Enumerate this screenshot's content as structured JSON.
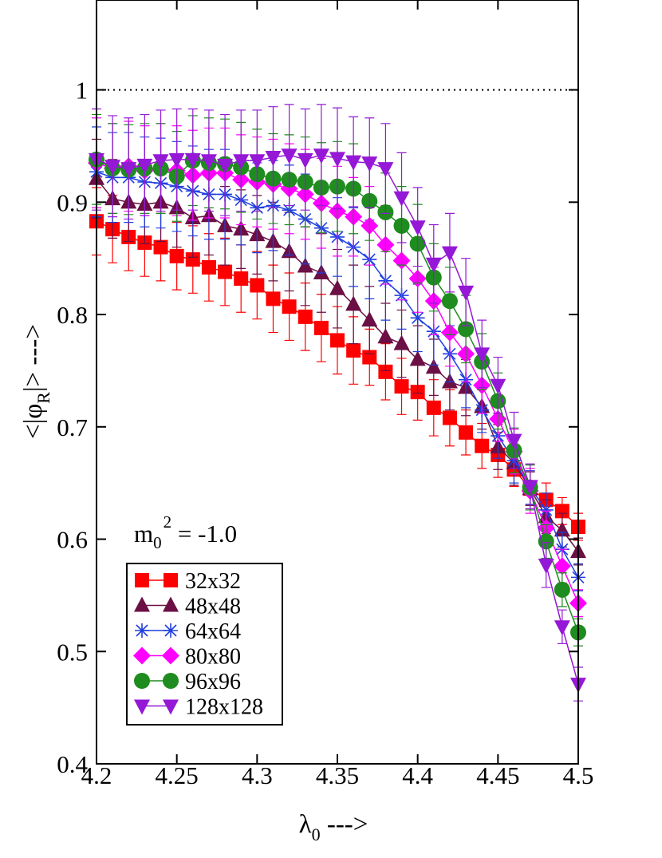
{
  "chart_data": {
    "type": "scatter",
    "xlabel": "λ",
    "xlabel_sub": "0",
    "xlabel_arrow": " --->",
    "ylabel_left": "<|φ",
    "ylabel_sub": "R",
    "ylabel_right": "|> --->",
    "xlim": [
      4.2,
      4.5
    ],
    "ylim": [
      0.4,
      1.08
    ],
    "xticks": [
      4.2,
      4.25,
      4.3,
      4.35,
      4.4,
      4.45,
      4.5
    ],
    "xtick_labels": [
      "4.2",
      "4.25",
      "4.3",
      "4.35",
      "4.4",
      "4.45",
      "4.5"
    ],
    "yticks": [
      0.4,
      0.5,
      0.6,
      0.7,
      0.8,
      0.9,
      1.0
    ],
    "ytick_labels": [
      "0.4",
      "0.5",
      "0.6",
      "0.7",
      "0.8",
      "0.9",
      "1"
    ],
    "reference_line": {
      "y": 1.0,
      "style": "dotted"
    },
    "annotation": {
      "base": "m",
      "sub": "0",
      "sup": "2",
      "rest": " = -1.0"
    },
    "legend_position": "bottom-left",
    "series": [
      {
        "name": "32x32",
        "color": "#ff0000",
        "marker": "square",
        "x": [
          4.2,
          4.21,
          4.22,
          4.23,
          4.24,
          4.25,
          4.26,
          4.27,
          4.28,
          4.29,
          4.3,
          4.31,
          4.32,
          4.33,
          4.34,
          4.35,
          4.36,
          4.37,
          4.38,
          4.39,
          4.4,
          4.41,
          4.42,
          4.43,
          4.44,
          4.45,
          4.46,
          4.47,
          4.48,
          4.49,
          4.5
        ],
        "y": [
          0.883,
          0.876,
          0.869,
          0.864,
          0.86,
          0.852,
          0.849,
          0.842,
          0.838,
          0.832,
          0.826,
          0.814,
          0.807,
          0.798,
          0.788,
          0.777,
          0.768,
          0.762,
          0.749,
          0.736,
          0.731,
          0.717,
          0.708,
          0.695,
          0.683,
          0.675,
          0.662,
          0.645,
          0.635,
          0.625,
          0.611
        ],
        "err": [
          0.03,
          0.03,
          0.03,
          0.03,
          0.03,
          0.03,
          0.03,
          0.03,
          0.03,
          0.03,
          0.03,
          0.03,
          0.03,
          0.03,
          0.03,
          0.03,
          0.03,
          0.025,
          0.025,
          0.025,
          0.025,
          0.025,
          0.025,
          0.02,
          0.02,
          0.02,
          0.015,
          0.015,
          0.015,
          0.012,
          0.012
        ]
      },
      {
        "name": "48x48",
        "color": "#6b0f45",
        "marker": "triangle-up",
        "x": [
          4.2,
          4.21,
          4.22,
          4.23,
          4.24,
          4.25,
          4.26,
          4.27,
          4.28,
          4.29,
          4.3,
          4.31,
          4.32,
          4.33,
          4.34,
          4.35,
          4.36,
          4.37,
          4.38,
          4.39,
          4.4,
          4.41,
          4.42,
          4.43,
          4.44,
          4.45,
          4.46,
          4.47,
          4.48,
          4.49,
          4.5
        ],
        "y": [
          0.921,
          0.903,
          0.9,
          0.898,
          0.9,
          0.895,
          0.886,
          0.888,
          0.879,
          0.876,
          0.871,
          0.865,
          0.856,
          0.843,
          0.837,
          0.823,
          0.809,
          0.795,
          0.78,
          0.774,
          0.76,
          0.753,
          0.74,
          0.735,
          0.718,
          0.682,
          0.668,
          0.645,
          0.62,
          0.608,
          0.589
        ],
        "err": [
          0.035,
          0.035,
          0.035,
          0.035,
          0.035,
          0.035,
          0.035,
          0.035,
          0.035,
          0.035,
          0.035,
          0.035,
          0.035,
          0.035,
          0.035,
          0.035,
          0.035,
          0.03,
          0.03,
          0.03,
          0.03,
          0.025,
          0.025,
          0.025,
          0.02,
          0.02,
          0.02,
          0.015,
          0.015,
          0.015,
          0.012
        ]
      },
      {
        "name": "64x64",
        "color": "#1f3fe0",
        "marker": "asterisk",
        "x": [
          4.2,
          4.21,
          4.22,
          4.23,
          4.24,
          4.25,
          4.26,
          4.27,
          4.28,
          4.29,
          4.3,
          4.31,
          4.32,
          4.33,
          4.34,
          4.35,
          4.36,
          4.37,
          4.38,
          4.39,
          4.4,
          4.41,
          4.42,
          4.43,
          4.44,
          4.45,
          4.46,
          4.47,
          4.48,
          4.49,
          4.5
        ],
        "y": [
          0.927,
          0.922,
          0.922,
          0.918,
          0.917,
          0.914,
          0.91,
          0.907,
          0.907,
          0.902,
          0.895,
          0.897,
          0.893,
          0.885,
          0.877,
          0.869,
          0.86,
          0.849,
          0.83,
          0.817,
          0.797,
          0.785,
          0.765,
          0.742,
          0.715,
          0.692,
          0.67,
          0.646,
          0.626,
          0.591,
          0.566
        ],
        "err": [
          0.04,
          0.04,
          0.04,
          0.04,
          0.04,
          0.04,
          0.04,
          0.04,
          0.04,
          0.04,
          0.04,
          0.04,
          0.04,
          0.04,
          0.04,
          0.035,
          0.035,
          0.035,
          0.035,
          0.03,
          0.03,
          0.03,
          0.025,
          0.025,
          0.02,
          0.02,
          0.02,
          0.015,
          0.015,
          0.015,
          0.012
        ]
      },
      {
        "name": "80x80",
        "color": "#ff00ff",
        "marker": "diamond",
        "x": [
          4.2,
          4.21,
          4.22,
          4.23,
          4.24,
          4.25,
          4.26,
          4.27,
          4.28,
          4.29,
          4.3,
          4.31,
          4.32,
          4.33,
          4.34,
          4.35,
          4.36,
          4.37,
          4.38,
          4.39,
          4.4,
          4.41,
          4.42,
          4.43,
          4.44,
          4.45,
          4.46,
          4.47,
          4.48,
          4.49,
          4.5
        ],
        "y": [
          0.935,
          0.93,
          0.932,
          0.928,
          0.93,
          0.928,
          0.924,
          0.926,
          0.926,
          0.92,
          0.918,
          0.916,
          0.912,
          0.907,
          0.899,
          0.892,
          0.887,
          0.879,
          0.862,
          0.848,
          0.832,
          0.812,
          0.784,
          0.765,
          0.737,
          0.707,
          0.678,
          0.643,
          0.61,
          0.576,
          0.543
        ],
        "err": [
          0.04,
          0.04,
          0.04,
          0.04,
          0.04,
          0.04,
          0.04,
          0.04,
          0.04,
          0.04,
          0.04,
          0.04,
          0.04,
          0.04,
          0.04,
          0.04,
          0.035,
          0.035,
          0.035,
          0.035,
          0.03,
          0.03,
          0.03,
          0.025,
          0.025,
          0.02,
          0.02,
          0.02,
          0.015,
          0.015,
          0.012
        ]
      },
      {
        "name": "96x96",
        "color": "#1e8c1e",
        "marker": "circle",
        "x": [
          4.2,
          4.21,
          4.22,
          4.23,
          4.24,
          4.25,
          4.26,
          4.27,
          4.28,
          4.29,
          4.3,
          4.31,
          4.32,
          4.33,
          4.34,
          4.35,
          4.36,
          4.37,
          4.38,
          4.39,
          4.4,
          4.41,
          4.42,
          4.43,
          4.44,
          4.45,
          4.46,
          4.47,
          4.48,
          4.49,
          4.5
        ],
        "y": [
          0.938,
          0.93,
          0.929,
          0.93,
          0.93,
          0.923,
          0.937,
          0.935,
          0.934,
          0.931,
          0.925,
          0.921,
          0.92,
          0.918,
          0.913,
          0.914,
          0.912,
          0.901,
          0.891,
          0.879,
          0.863,
          0.833,
          0.812,
          0.787,
          0.758,
          0.723,
          0.679,
          0.646,
          0.598,
          0.555,
          0.517
        ],
        "err": [
          0.04,
          0.04,
          0.04,
          0.04,
          0.04,
          0.04,
          0.04,
          0.04,
          0.04,
          0.04,
          0.04,
          0.04,
          0.04,
          0.04,
          0.04,
          0.04,
          0.04,
          0.035,
          0.035,
          0.035,
          0.035,
          0.03,
          0.03,
          0.03,
          0.025,
          0.025,
          0.02,
          0.02,
          0.015,
          0.015,
          0.012
        ]
      },
      {
        "name": "128x128",
        "color": "#9418d6",
        "marker": "triangle-down",
        "x": [
          4.2,
          4.21,
          4.22,
          4.23,
          4.24,
          4.25,
          4.26,
          4.27,
          4.28,
          4.29,
          4.3,
          4.31,
          4.32,
          4.33,
          4.34,
          4.35,
          4.36,
          4.37,
          4.38,
          4.39,
          4.4,
          4.41,
          4.42,
          4.43,
          4.44,
          4.45,
          4.46,
          4.47,
          4.48,
          4.49,
          4.5
        ],
        "y": [
          0.938,
          0.932,
          0.93,
          0.933,
          0.937,
          0.938,
          0.938,
          0.937,
          0.933,
          0.937,
          0.937,
          0.94,
          0.942,
          0.938,
          0.942,
          0.939,
          0.936,
          0.935,
          0.93,
          0.904,
          0.878,
          0.845,
          0.855,
          0.82,
          0.765,
          0.737,
          0.688,
          0.647,
          0.577,
          0.522,
          0.471
        ],
        "err": [
          0.045,
          0.045,
          0.045,
          0.045,
          0.045,
          0.045,
          0.045,
          0.045,
          0.045,
          0.045,
          0.045,
          0.045,
          0.045,
          0.045,
          0.045,
          0.045,
          0.04,
          0.04,
          0.04,
          0.04,
          0.035,
          0.035,
          0.035,
          0.03,
          0.03,
          0.025,
          0.025,
          0.02,
          0.02,
          0.015,
          0.015
        ]
      }
    ]
  }
}
